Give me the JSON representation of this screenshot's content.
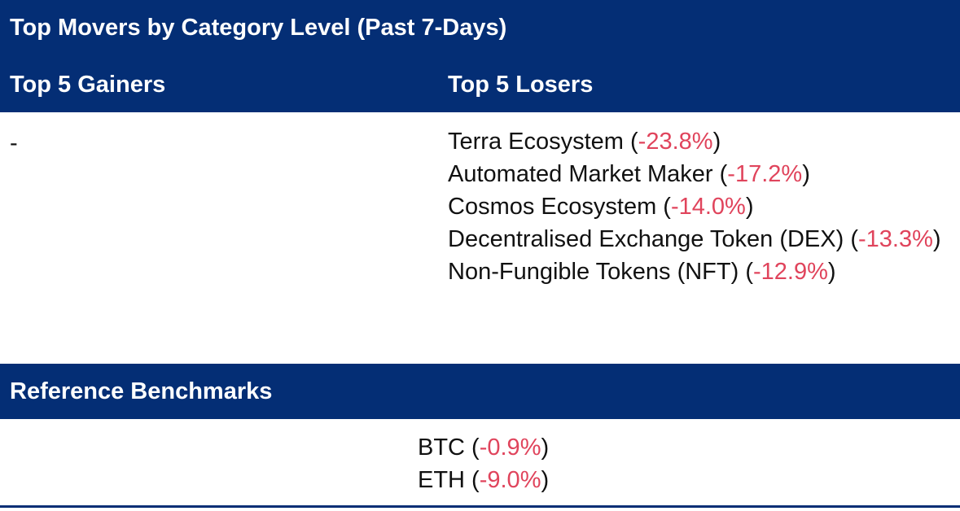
{
  "header": {
    "title": "Top Movers by Category Level (Past 7-Days)",
    "gainers_title": "Top 5 Gainers",
    "losers_title": "Top 5 Losers"
  },
  "gainers": {
    "placeholder": "-"
  },
  "losers": [
    {
      "name": "Terra Ecosystem",
      "change": "-23.8%"
    },
    {
      "name": "Automated Market Maker",
      "change": "-17.2%"
    },
    {
      "name": "Cosmos Ecosystem",
      "change": "-14.0%"
    },
    {
      "name": "Decentralised Exchange Token (DEX)",
      "change": "-13.3%"
    },
    {
      "name": "Non-Fungible Tokens (NFT)",
      "change": "-12.9%"
    }
  ],
  "benchmarks": {
    "title": "Reference Benchmarks",
    "items": [
      {
        "name": "BTC",
        "change": "-0.9%"
      },
      {
        "name": "ETH",
        "change": "-9.0%"
      }
    ]
  },
  "colors": {
    "header_bg": "#042e75",
    "negative": "#e0445c"
  }
}
